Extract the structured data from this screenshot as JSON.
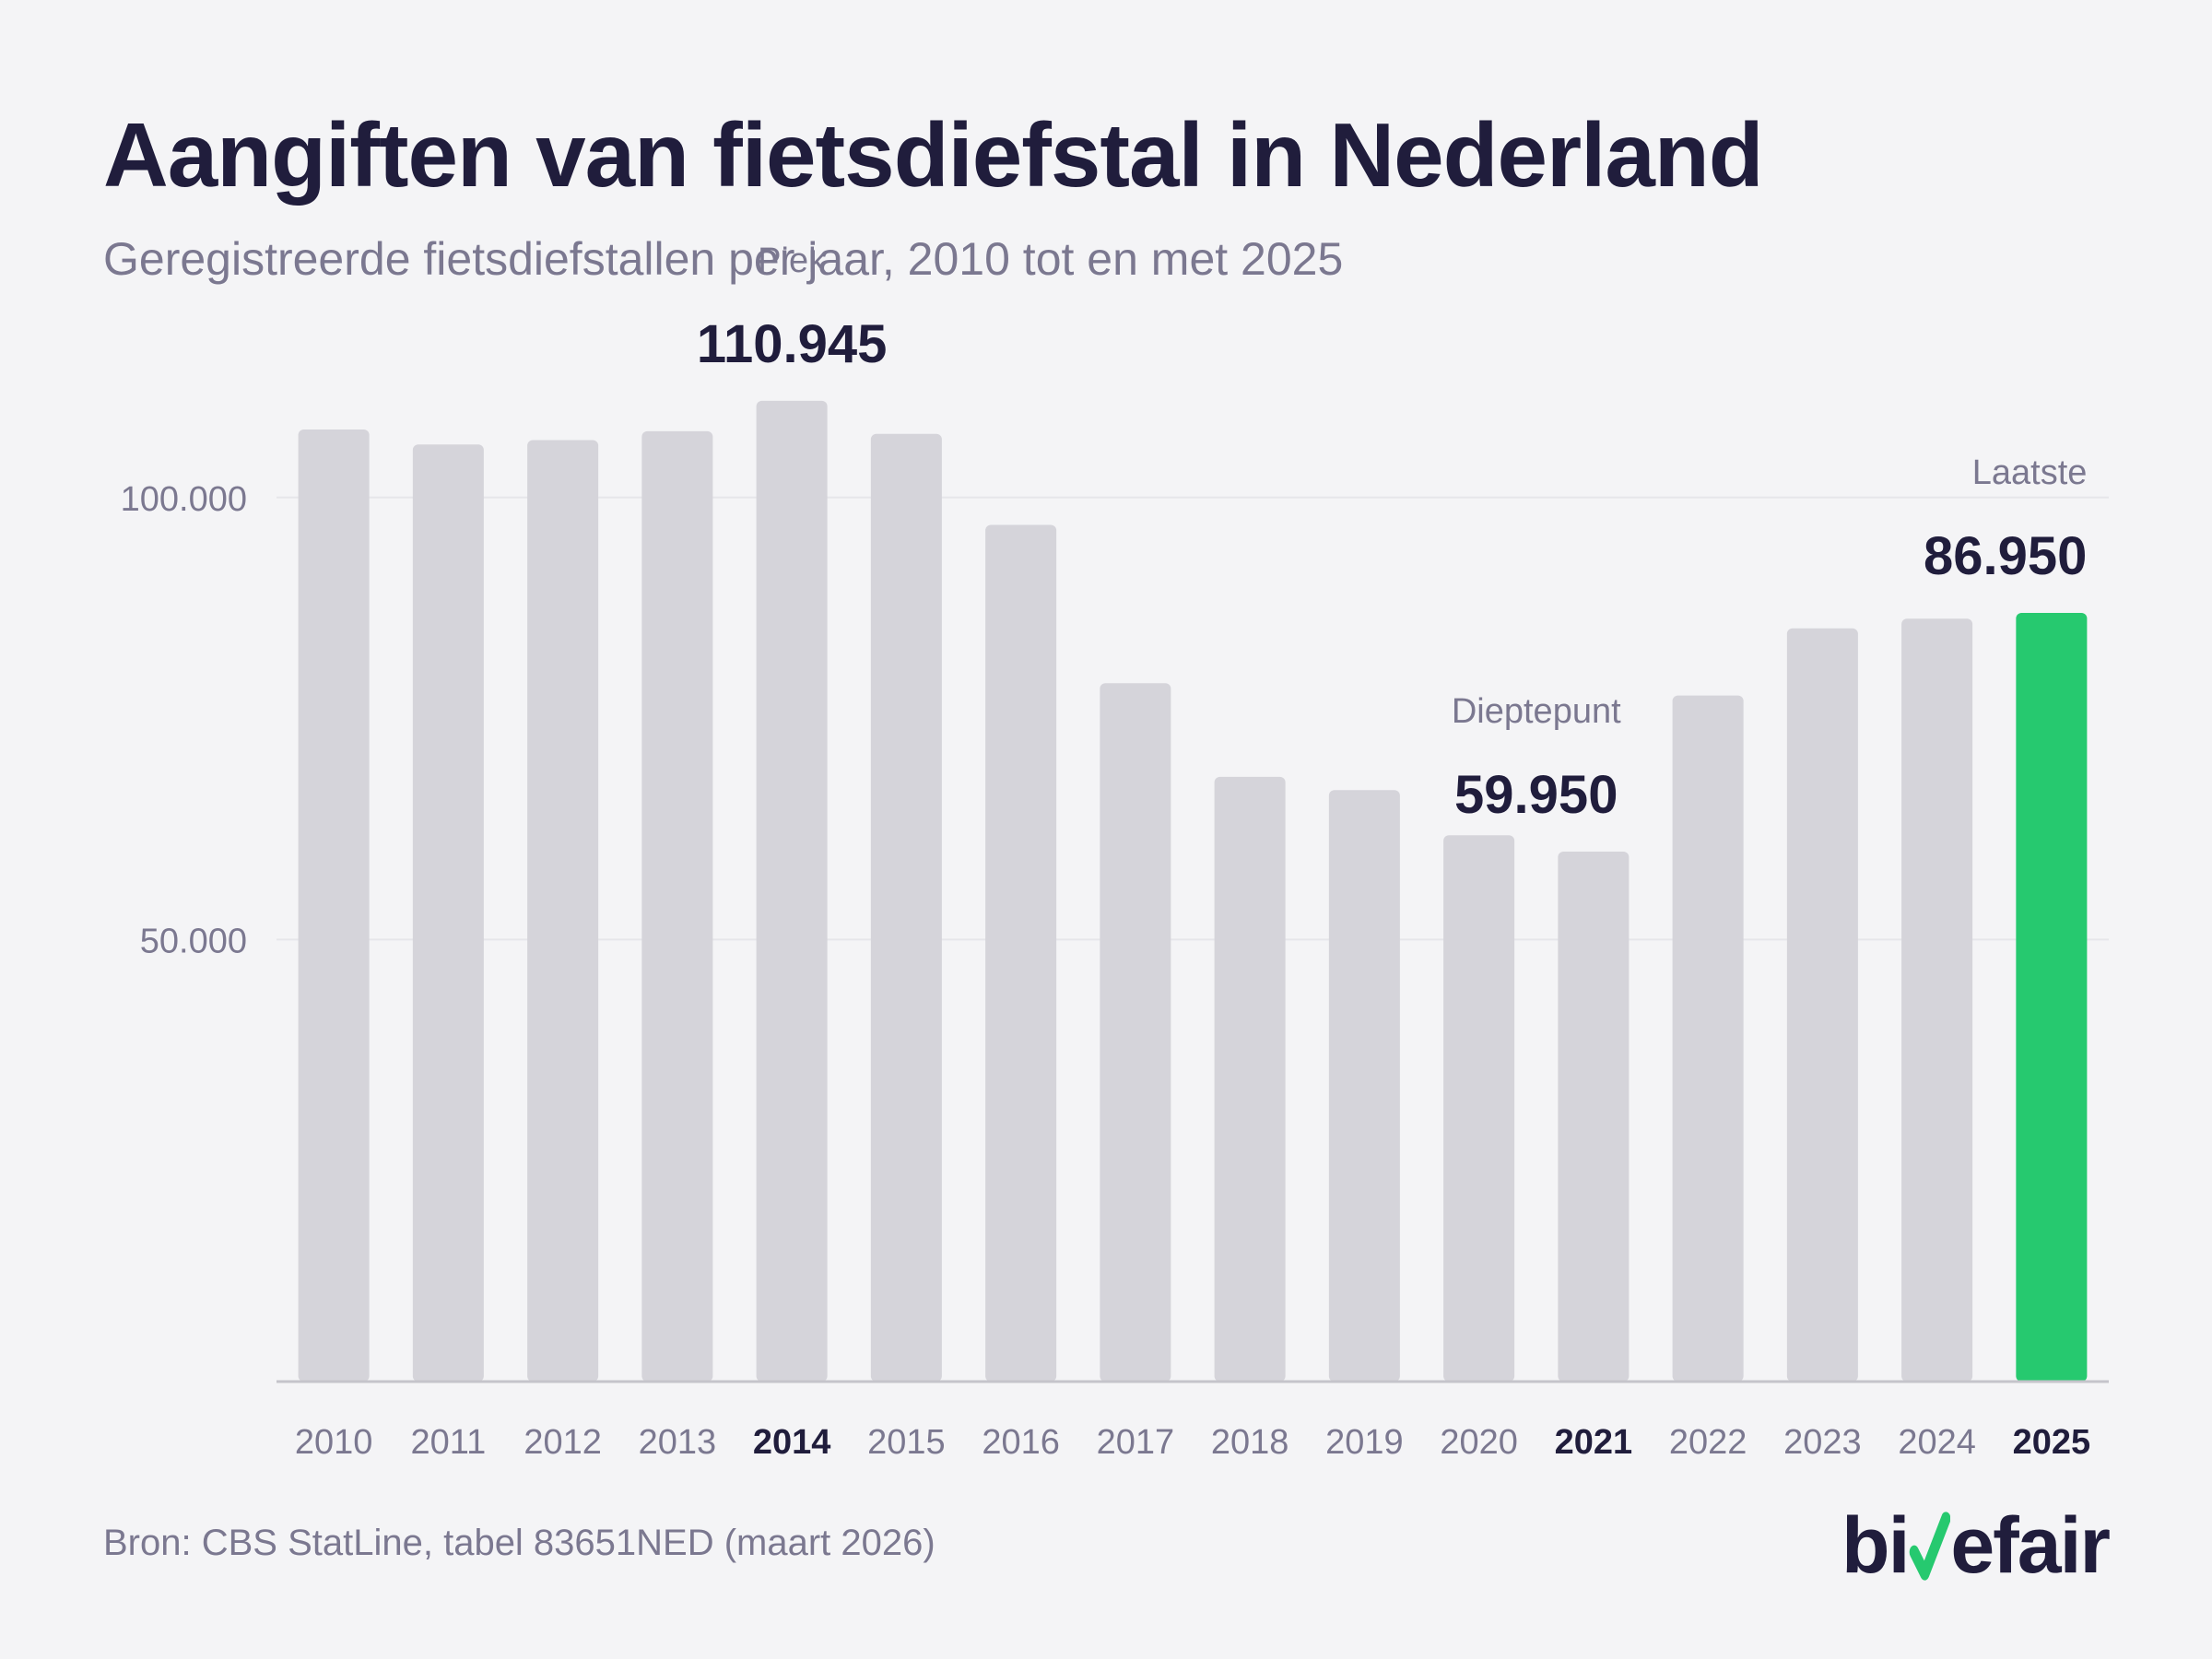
{
  "header": {
    "title": "Aangiften van fietsdiefstal in Nederland",
    "subtitle": "Geregistreerde fietsdiefstallen per jaar, 2010 tot en met 2025"
  },
  "footer": {
    "source": "Bron: CBS StatLine, tabel 83651NED (maart 2026)",
    "logo": {
      "part1": "bi",
      "part2": "k",
      "part3": "efair",
      "accent_color": "#26c96f"
    }
  },
  "colors": {
    "bar": "#d5d4da",
    "highlight": "#26c96f",
    "text_dark": "#201d3c",
    "text_muted": "#7b7890",
    "grid": "#e6e6ea",
    "axis": "#c5c4cb"
  },
  "chart_data": {
    "type": "bar",
    "categories": [
      "2010",
      "2011",
      "2012",
      "2013",
      "2014",
      "2015",
      "2016",
      "2017",
      "2018",
      "2019",
      "2020",
      "2021",
      "2022",
      "2023",
      "2024",
      "2025"
    ],
    "values": [
      107700,
      106000,
      106500,
      107500,
      110945,
      107200,
      96900,
      79000,
      68400,
      66900,
      61800,
      59950,
      77600,
      85200,
      86300,
      86950
    ],
    "ylim": [
      0,
      125000
    ],
    "yticks": [
      {
        "value": 50000,
        "label": "50.000"
      },
      {
        "value": 100000,
        "label": "100.000"
      }
    ],
    "bold_categories": [
      "2014",
      "2021",
      "2025"
    ],
    "highlight_category": "2025",
    "annotations": [
      {
        "category": "2014",
        "label": "Piek",
        "value_text": "110.945"
      },
      {
        "category": "2021",
        "label": "Dieptepunt",
        "value_text": "59.950"
      },
      {
        "category": "2025",
        "label": "Laatste",
        "value_text": "86.950"
      }
    ],
    "grid": true
  }
}
